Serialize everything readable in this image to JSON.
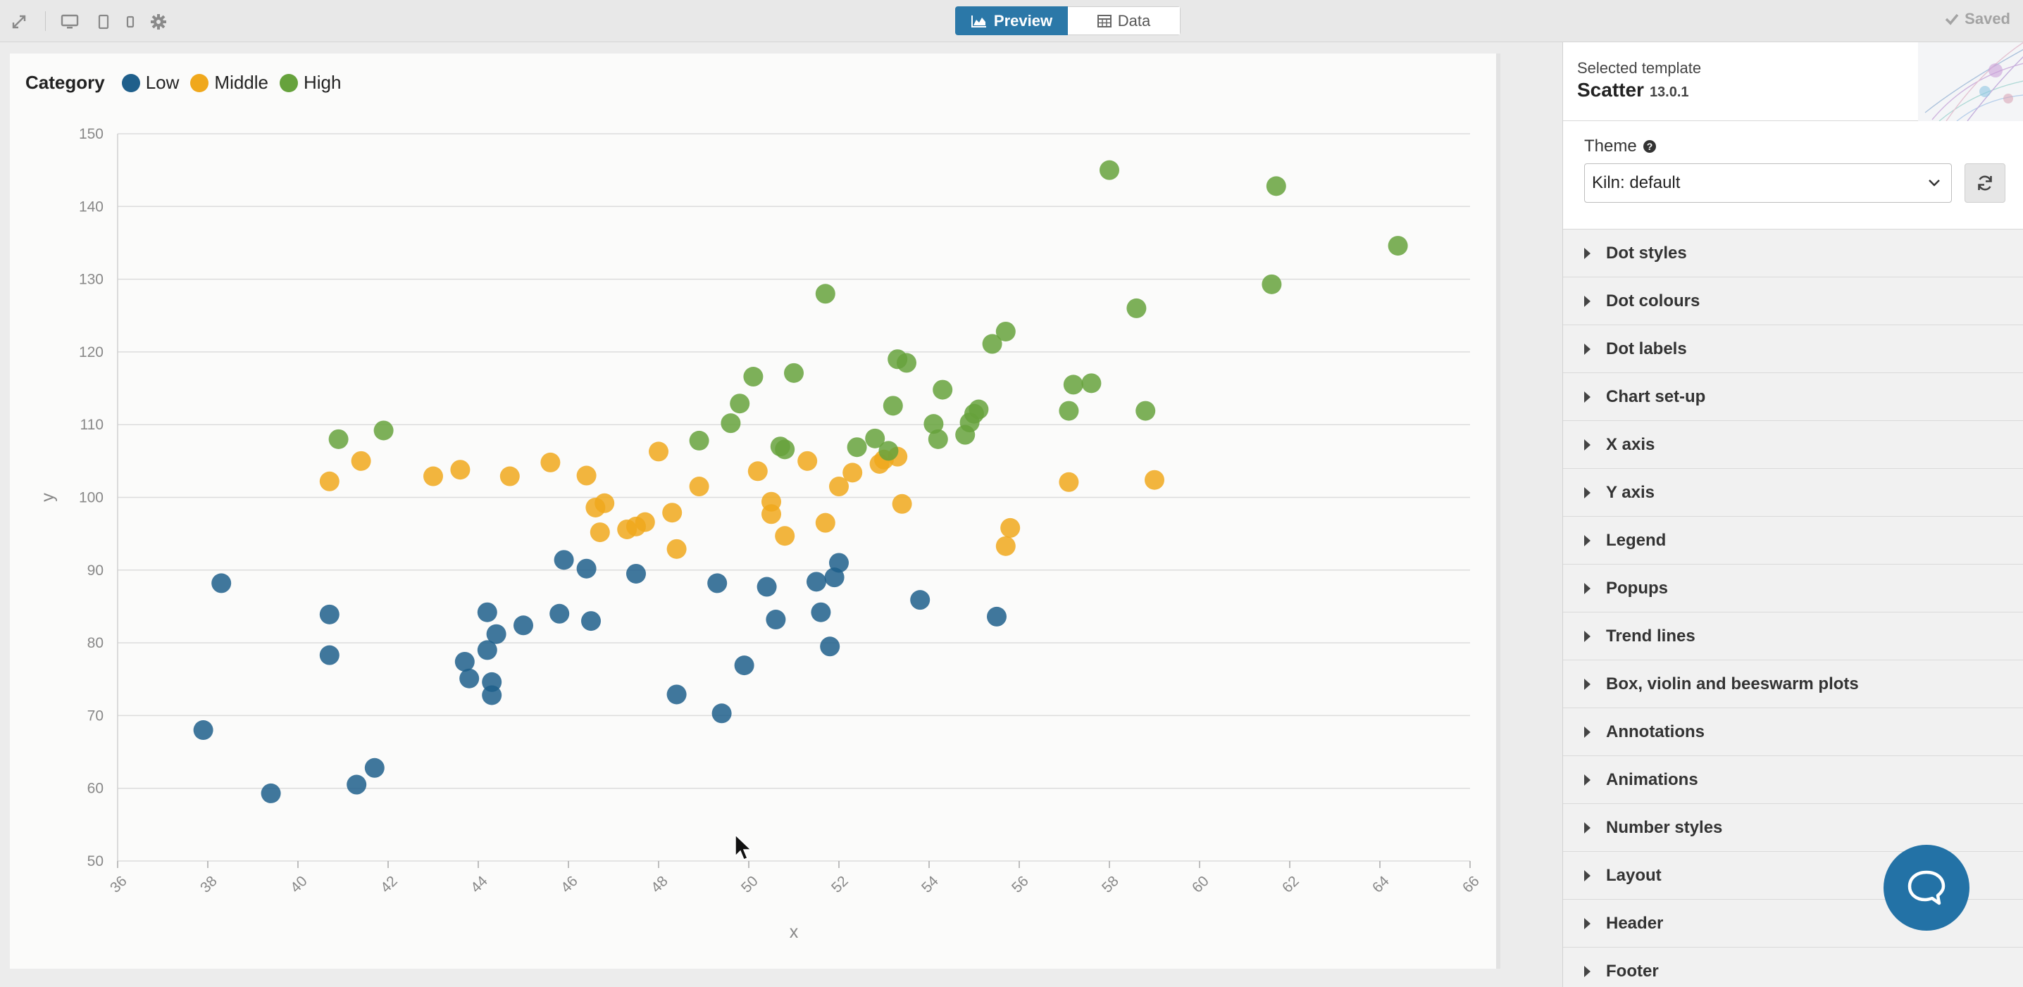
{
  "toolbar": {
    "expand_icon": "expand-icon",
    "device_icons": [
      "desktop-icon",
      "tablet-icon",
      "mobile-icon"
    ],
    "settings_icon": "gear-icon",
    "preview_label": "Preview",
    "data_label": "Data",
    "saved_label": "Saved"
  },
  "legend": {
    "title": "Category",
    "items": [
      {
        "label": "Low",
        "color": "#1f5f8b"
      },
      {
        "label": "Middle",
        "color": "#f0a81c"
      },
      {
        "label": "High",
        "color": "#66a23c"
      }
    ]
  },
  "chart_data": {
    "type": "scatter",
    "xlabel": "x",
    "ylabel": "y",
    "xlim": [
      36,
      66
    ],
    "ylim": [
      50,
      150
    ],
    "xticks": [
      36,
      38,
      40,
      42,
      44,
      46,
      48,
      50,
      52,
      54,
      56,
      58,
      60,
      62,
      64,
      66
    ],
    "yticks": [
      50,
      60,
      70,
      80,
      90,
      100,
      110,
      120,
      130,
      140,
      150
    ],
    "grid": "horizontal",
    "legend_position": "top-left",
    "series": [
      {
        "name": "Low",
        "color": "#1f5f8b",
        "points": [
          [
            37.9,
            68
          ],
          [
            38.3,
            88.2
          ],
          [
            39.4,
            59.3
          ],
          [
            40.7,
            83.9
          ],
          [
            40.7,
            78.3
          ],
          [
            41.3,
            60.5
          ],
          [
            41.7,
            62.8
          ],
          [
            43.7,
            77.4
          ],
          [
            43.8,
            75.1
          ],
          [
            44.2,
            79
          ],
          [
            44.2,
            84.2
          ],
          [
            44.3,
            72.8
          ],
          [
            44.3,
            74.6
          ],
          [
            44.4,
            81.2
          ],
          [
            45,
            82.4
          ],
          [
            45.8,
            84
          ],
          [
            45.9,
            91.4
          ],
          [
            46.4,
            90.2
          ],
          [
            46.5,
            83
          ],
          [
            47.5,
            89.5
          ],
          [
            48.4,
            72.9
          ],
          [
            49.3,
            88.2
          ],
          [
            49.4,
            70.3
          ],
          [
            49.9,
            76.9
          ],
          [
            50.4,
            87.7
          ],
          [
            50.6,
            83.2
          ],
          [
            51.5,
            88.4
          ],
          [
            51.6,
            84.2
          ],
          [
            51.8,
            79.5
          ],
          [
            51.9,
            89
          ],
          [
            52,
            91
          ],
          [
            53.8,
            85.9
          ],
          [
            55.5,
            83.6
          ]
        ]
      },
      {
        "name": "Middle",
        "color": "#f0a81c",
        "points": [
          [
            40.7,
            102.2
          ],
          [
            41.4,
            105
          ],
          [
            43,
            102.9
          ],
          [
            43.6,
            103.8
          ],
          [
            44.7,
            102.9
          ],
          [
            45.6,
            104.8
          ],
          [
            46.4,
            103
          ],
          [
            46.6,
            98.6
          ],
          [
            46.7,
            95.2
          ],
          [
            46.8,
            99.2
          ],
          [
            47.3,
            95.6
          ],
          [
            47.5,
            96
          ],
          [
            47.7,
            96.6
          ],
          [
            48,
            106.3
          ],
          [
            48.3,
            97.9
          ],
          [
            48.4,
            92.9
          ],
          [
            48.9,
            101.5
          ],
          [
            50.2,
            103.6
          ],
          [
            50.5,
            97.7
          ],
          [
            50.5,
            99.4
          ],
          [
            50.8,
            94.7
          ],
          [
            51.3,
            105
          ],
          [
            51.7,
            96.5
          ],
          [
            52,
            101.5
          ],
          [
            52.3,
            103.4
          ],
          [
            52.9,
            104.6
          ],
          [
            53,
            105.2
          ],
          [
            53.3,
            105.6
          ],
          [
            53.4,
            99.1
          ],
          [
            55.7,
            93.3
          ],
          [
            55.8,
            95.8
          ],
          [
            57.1,
            102.1
          ],
          [
            59,
            102.4
          ]
        ]
      },
      {
        "name": "High",
        "color": "#66a23c",
        "points": [
          [
            40.9,
            108
          ],
          [
            41.9,
            109.2
          ],
          [
            48.9,
            107.8
          ],
          [
            49.6,
            110.2
          ],
          [
            49.8,
            112.9
          ],
          [
            50.1,
            116.6
          ],
          [
            50.7,
            107
          ],
          [
            50.8,
            106.6
          ],
          [
            51,
            117.1
          ],
          [
            51.7,
            128
          ],
          [
            52.4,
            106.9
          ],
          [
            52.8,
            108.1
          ],
          [
            53.1,
            106.4
          ],
          [
            53.2,
            112.6
          ],
          [
            53.3,
            119
          ],
          [
            53.5,
            118.5
          ],
          [
            54.1,
            110.1
          ],
          [
            54.2,
            108
          ],
          [
            54.3,
            114.8
          ],
          [
            54.8,
            108.6
          ],
          [
            54.9,
            110.3
          ],
          [
            55,
            111.5
          ],
          [
            55.1,
            112.1
          ],
          [
            55.4,
            121.1
          ],
          [
            55.7,
            122.8
          ],
          [
            57.1,
            111.9
          ],
          [
            57.2,
            115.5
          ],
          [
            57.6,
            115.7
          ],
          [
            58,
            145
          ],
          [
            58.6,
            126
          ],
          [
            58.8,
            111.9
          ],
          [
            61.6,
            129.3
          ],
          [
            61.7,
            142.8
          ],
          [
            64.4,
            134.6
          ]
        ]
      }
    ]
  },
  "sidebar": {
    "template_label": "Selected template",
    "template_name": "Scatter",
    "template_version": "13.0.1",
    "theme_label": "Theme",
    "theme_value": "Kiln: default",
    "sections": [
      "Dot styles",
      "Dot colours",
      "Dot labels",
      "Chart set-up",
      "X axis",
      "Y axis",
      "Legend",
      "Popups",
      "Trend lines",
      "Box, violin and beeswarm plots",
      "Annotations",
      "Animations",
      "Number styles",
      "Layout",
      "Header",
      "Footer"
    ]
  },
  "chat": {
    "icon": "chat-bubble-icon"
  }
}
